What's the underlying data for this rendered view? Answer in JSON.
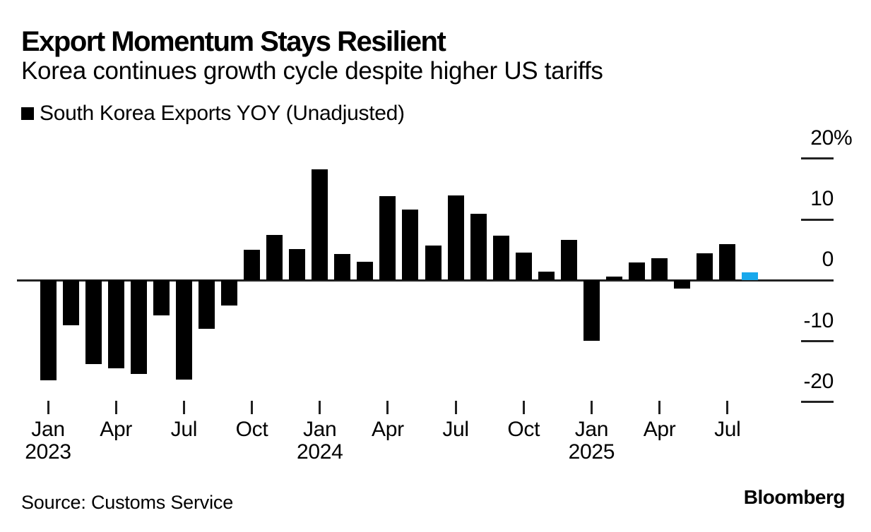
{
  "header": {
    "title": "Export Momentum Stays Resilient",
    "subtitle": "Korea continues growth cycle despite higher US tariffs",
    "legend": {
      "label": "South Korea Exports YOY (Unadjusted)",
      "swatch_color": "#000000"
    }
  },
  "chart_data": {
    "type": "bar",
    "title": "Export Momentum Stays Resilient",
    "subtitle": "Korea continues growth cycle despite higher US tariffs",
    "unit": "%",
    "ylim": [
      -20,
      20
    ],
    "grid": false,
    "legend_position": "top-left",
    "categories": [
      "Jan 2023",
      "Feb 2023",
      "Mar 2023",
      "Apr 2023",
      "May 2023",
      "Jun 2023",
      "Jul 2023",
      "Aug 2023",
      "Sep 2023",
      "Oct 2023",
      "Nov 2023",
      "Dec 2023",
      "Jan 2024",
      "Feb 2024",
      "Mar 2024",
      "Apr 2024",
      "May 2024",
      "Jun 2024",
      "Jul 2024",
      "Aug 2024",
      "Sep 2024",
      "Oct 2024",
      "Nov 2024",
      "Dec 2024",
      "Jan 2025",
      "Feb 2025",
      "Mar 2025",
      "Apr 2025",
      "May 2025",
      "Jun 2025",
      "Jul 2025",
      "Aug 2025"
    ],
    "series": [
      {
        "name": "South Korea Exports YOY (Unadjusted)",
        "values": [
          -16.4,
          -7.4,
          -13.8,
          -14.4,
          -15.4,
          -5.8,
          -16.3,
          -8.0,
          -4.1,
          5.0,
          7.5,
          5.1,
          18.2,
          4.3,
          3.1,
          13.8,
          11.6,
          5.7,
          14.0,
          11.0,
          7.3,
          4.6,
          1.4,
          6.7,
          -9.9,
          0.6,
          2.9,
          3.6,
          -1.3,
          4.4,
          6.0,
          1.3
        ]
      }
    ],
    "highlight_index": 31,
    "yticks": [
      {
        "text": "20",
        "suffix": "%",
        "value": 20
      },
      {
        "text": "10",
        "suffix": "",
        "value": 10
      },
      {
        "text": "0",
        "suffix": "",
        "value": 0
      },
      {
        "text": "-10",
        "suffix": "",
        "value": -10
      },
      {
        "text": "-20",
        "suffix": "",
        "value": -20
      }
    ],
    "xticks": [
      {
        "month": "Jan",
        "year": "2023",
        "index": 0
      },
      {
        "month": "Apr",
        "year": "",
        "index": 3
      },
      {
        "month": "Jul",
        "year": "",
        "index": 6
      },
      {
        "month": "Oct",
        "year": "",
        "index": 9
      },
      {
        "month": "Jan",
        "year": "2024",
        "index": 12
      },
      {
        "month": "Apr",
        "year": "",
        "index": 15
      },
      {
        "month": "Jul",
        "year": "",
        "index": 18
      },
      {
        "month": "Oct",
        "year": "",
        "index": 21
      },
      {
        "month": "Jan",
        "year": "2025",
        "index": 24
      },
      {
        "month": "Apr",
        "year": "",
        "index": 27
      },
      {
        "month": "Jul",
        "year": "",
        "index": 30
      }
    ],
    "colors": {
      "bar_default": "#000000",
      "bar_highlight": "#18a8ec",
      "axis": "#222222",
      "text": "#000000"
    }
  },
  "footer": {
    "source": "Source: Customs Service",
    "brand": "Bloomberg"
  }
}
